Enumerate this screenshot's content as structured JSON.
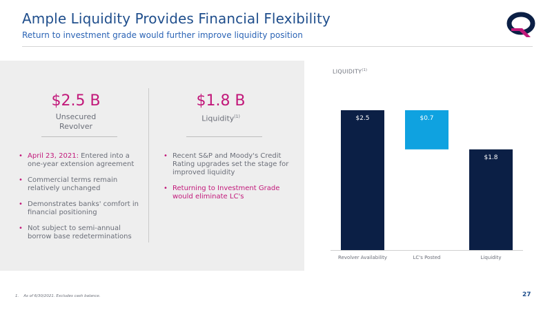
{
  "header": {
    "title": "Ample Liquidity Provides Financial Flexibility",
    "subtitle": "Return to investment grade would further improve liquidity position"
  },
  "left_panel": {
    "left": {
      "amount": "$2.5 B",
      "label_line1": "Unsecured",
      "label_line2": "Revolver",
      "bullets": [
        {
          "highlight": "April 23, 2021:",
          "text": " Entered into a one-year extension agreement"
        },
        {
          "highlight": "",
          "text": "Commercial terms remain relatively unchanged"
        },
        {
          "highlight": "",
          "text": "Demonstrates banks' comfort in financial positioning"
        },
        {
          "highlight": "",
          "text": "Not subject to semi-annual borrow base redeterminations"
        }
      ]
    },
    "right": {
      "amount": "$1.8 B",
      "label": "Liquidity",
      "label_sup": "(1)",
      "bullets": [
        {
          "text": "Recent S&P and Moody's Credit Rating upgrades set the stage for improved liquidity"
        },
        {
          "text": "Returning to Investment Grade would eliminate LC's"
        }
      ]
    }
  },
  "chart_label": {
    "text": "LIQUIDITY",
    "sup": "(1)"
  },
  "chart_data": {
    "type": "bar",
    "subtype": "waterfall",
    "title": "LIQUIDITY(1)",
    "categories": [
      "Revolver Availability",
      "LC's Posted",
      "Liquidity"
    ],
    "values": [
      2.5,
      -0.7,
      1.8
    ],
    "data_labels": [
      "$2.5",
      "$0.7",
      "$1.8"
    ],
    "ylim": [
      0,
      2.5
    ],
    "colors": {
      "total": "#0b1f45",
      "decrease": "#0fa2e0"
    },
    "grid": false,
    "legend": "none"
  },
  "footnote": {
    "num": "1.",
    "text": "As of 6/30/2021. Excludes cash balance."
  },
  "page_number": "27",
  "colors": {
    "accent": "#c2187a",
    "title": "#1f4e8c",
    "navy": "#0b1f45",
    "cyan": "#0fa2e0"
  }
}
